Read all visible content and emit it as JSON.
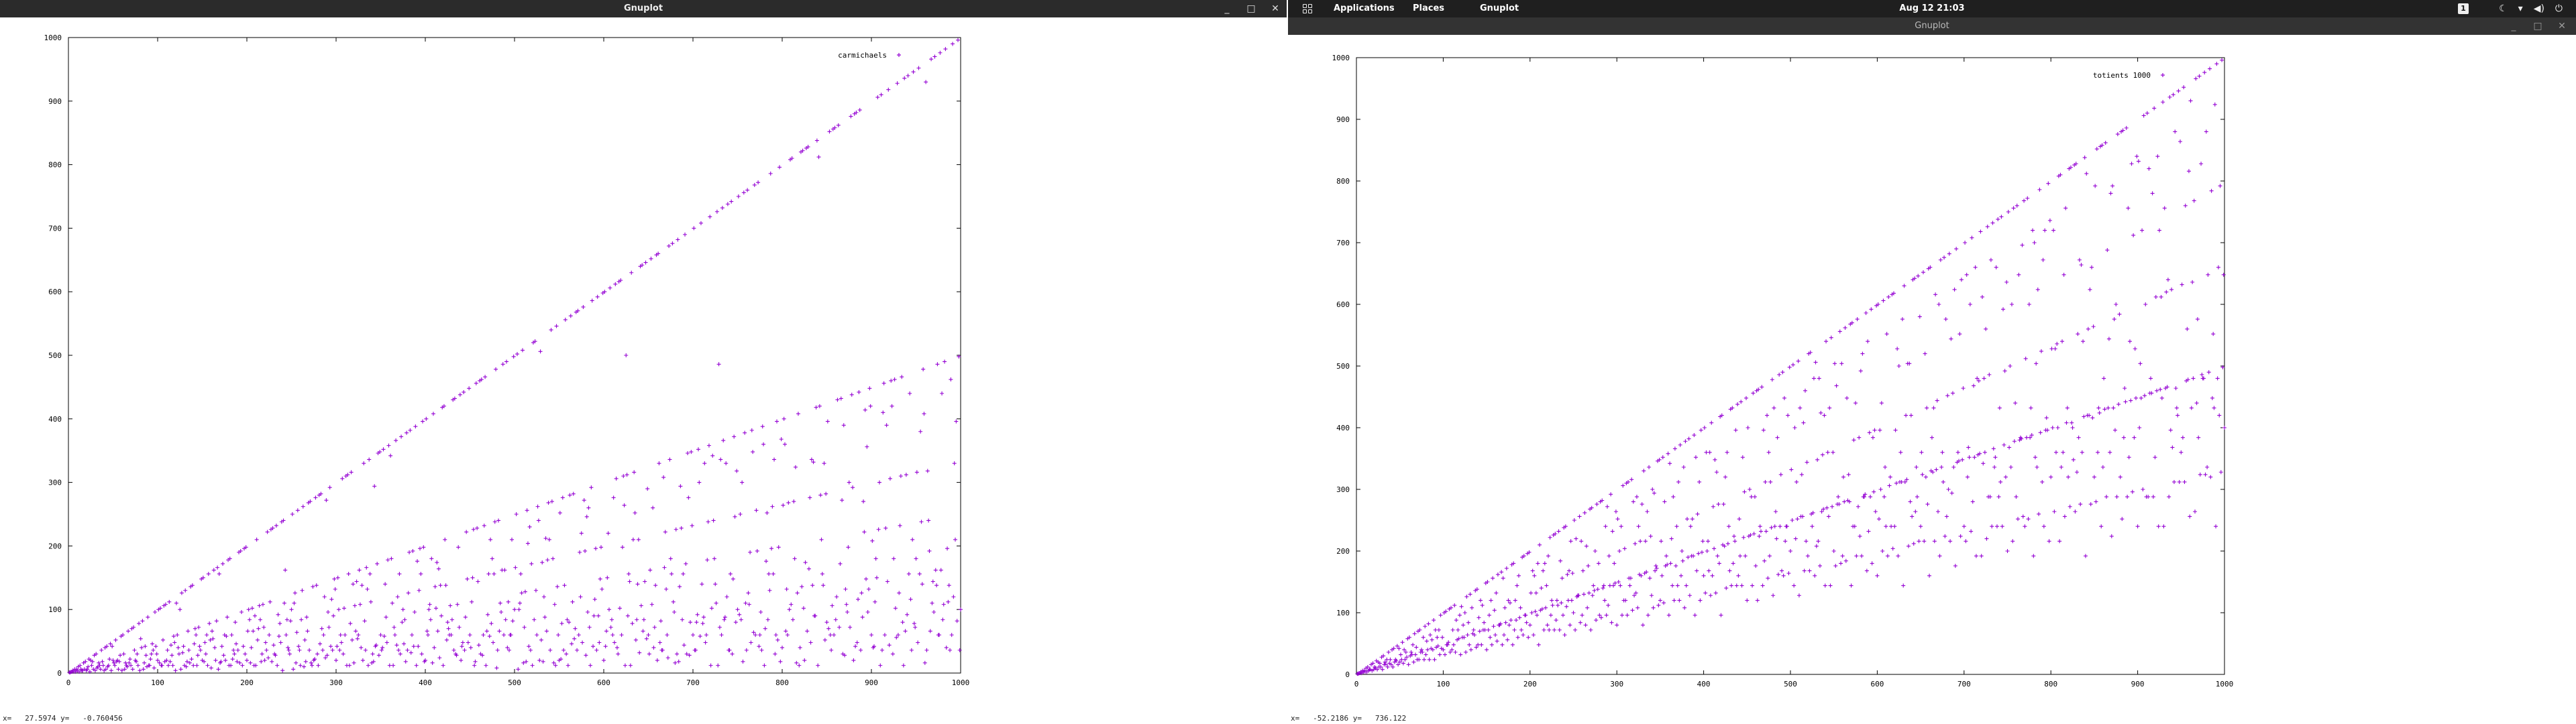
{
  "left_window": {
    "title": "Gnuplot",
    "controls": [
      "_",
      "□",
      "✕"
    ],
    "status": "x=   27.5974 y=   -0.760456",
    "chart_data": {
      "type": "scatter",
      "legend": "carmichaels",
      "legend_position": "top-right",
      "marker_color": "#9400d3",
      "xlim": [
        0,
        1000
      ],
      "ylim": [
        0,
        1000
      ],
      "xticks": [
        "0",
        "100",
        "200",
        "300",
        "400",
        "500",
        "600",
        "700",
        "800",
        "900",
        "1000"
      ],
      "yticks": [
        "0",
        "100",
        "200",
        "300",
        "400",
        "500",
        "600",
        "700",
        "800",
        "900",
        "1000"
      ],
      "series_description": "Carmichael function lambda(n) for n = 1..1000",
      "n_max": 1000
    }
  },
  "right_window": {
    "title": "Gnuplot",
    "controls": [
      "_",
      "□",
      "✕"
    ],
    "status": "x=   -52.2186 y=   736.122",
    "chart_data": {
      "type": "scatter",
      "legend": "totients 1000",
      "legend_position": "top-right",
      "marker_color": "#9400d3",
      "xlim": [
        0,
        1000
      ],
      "ylim": [
        0,
        1000
      ],
      "xticks": [
        "0",
        "100",
        "200",
        "300",
        "400",
        "500",
        "600",
        "700",
        "800",
        "900",
        "1000"
      ],
      "yticks": [
        "0",
        "100",
        "200",
        "300",
        "400",
        "500",
        "600",
        "700",
        "800",
        "900",
        "1000"
      ],
      "series_description": "Euler totient phi(n) for n = 1..1000",
      "n_max": 1000
    }
  },
  "topbar": {
    "menus": [
      "Applications",
      "Places",
      "Gnuplot"
    ],
    "clock": "Aug 12  21:03",
    "workspace": "1",
    "icons": [
      "apps-grid-icon",
      "night-light-icon",
      "wifi-icon",
      "volume-icon",
      "power-icon"
    ]
  }
}
